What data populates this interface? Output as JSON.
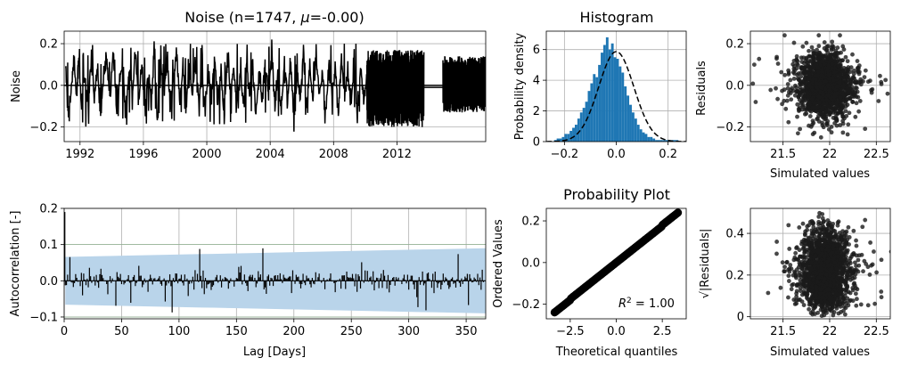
{
  "chart_data": [
    {
      "id": "noise",
      "type": "line",
      "title_prefix": "Noise (n=1747, ",
      "title_mu": "μ",
      "title_suffix": "=-0.00)",
      "xlabel": "",
      "ylabel": "Noise",
      "xlim": [
        1991.0,
        2017.6
      ],
      "ylim": [
        -0.27,
        0.26
      ],
      "xticks": [
        1992,
        1996,
        2000,
        2004,
        2008,
        2012
      ],
      "yticks": [
        -0.2,
        0.0,
        0.2
      ],
      "ytick_labels": [
        "−0.2",
        "0.0",
        "0.2"
      ],
      "grid": true,
      "series": [
        {
          "color": "#000000",
          "x": [
            1991.1,
            1991.2,
            1991.3,
            1991.5,
            1991.6,
            1991.8,
            1991.9,
            1992.1,
            1992.3,
            1992.5,
            1992.7,
            1992.9,
            1993.1,
            1993.3,
            1993.5,
            1993.7,
            1993.9,
            1994.1,
            1994.3,
            1994.5,
            1994.7,
            1994.9,
            1995.1,
            1995.3,
            1995.5,
            1995.7,
            1995.9,
            1996.1,
            1996.3,
            1996.5,
            1996.7,
            1996.9,
            1997.1,
            1997.3,
            1997.5,
            1997.7,
            1997.9,
            1998.1,
            1998.3,
            1998.5,
            1998.7,
            1998.9,
            1999.1,
            1999.3,
            1999.5,
            1999.7,
            1999.9,
            2000.1,
            2000.3,
            2000.5,
            2000.7,
            2000.9,
            2001.1,
            2001.3,
            2001.5,
            2001.7,
            2001.9,
            2002.1,
            2002.3,
            2002.5,
            2002.7,
            2002.9,
            2003.1,
            2003.3,
            2003.5,
            2003.7,
            2003.9,
            2004.1,
            2004.3,
            2004.5,
            2004.7,
            2004.9,
            2005.1,
            2005.3,
            2005.5,
            2005.7,
            2005.9,
            2006.1,
            2006.3,
            2006.5,
            2006.7,
            2006.9,
            2007.1,
            2007.3,
            2007.5,
            2007.7,
            2007.9,
            2008.1,
            2008.3,
            2008.5,
            2008.7,
            2008.9,
            2009.1,
            2009.3,
            2009.5,
            2009.7,
            2009.9,
            2010.1
          ],
          "y": [
            0.12,
            -0.1,
            -0.19,
            0.05,
            0.15,
            -0.08,
            0.18,
            -0.12,
            0.05,
            -0.16,
            0.2,
            -0.05,
            0.1,
            -0.18,
            0.08,
            0.15,
            -0.1,
            0.2,
            -0.13,
            0.06,
            0.12,
            -0.17,
            0.09,
            -0.05,
            0.21,
            -0.12,
            0.14,
            -0.19,
            0.07,
            -0.08,
            0.2,
            -0.24,
            0.1,
            -0.06,
            0.16,
            -0.11,
            0.05,
            0.18,
            -0.09,
            0.12,
            -0.15,
            0.08,
            -0.05,
            0.14,
            -0.1,
            0.06,
            -0.18,
            0.12,
            -0.07,
            0.17,
            -0.12,
            0.09,
            -0.2,
            0.15,
            -0.05,
            0.1,
            -0.15,
            0.07,
            -0.12,
            0.19,
            -0.08,
            0.13,
            -0.21,
            0.09,
            -0.1,
            0.16,
            -0.06,
            0.2,
            -0.13,
            0.08,
            -0.17,
            0.12,
            -0.09,
            0.15,
            -0.22,
            0.06,
            -0.08,
            0.17,
            -0.11,
            0.1,
            -0.14,
            0.2,
            -0.07,
            0.09,
            -0.18,
            0.14,
            -0.05,
            0.12,
            -0.16,
            0.18,
            -0.1,
            0.07,
            -0.13,
            0.16,
            -0.19,
            0.11,
            -0.08,
            0.04
          ]
        }
      ],
      "dense_bands": [
        {
          "x_from": 2010.1,
          "x_to": 2013.7,
          "y_lo": -0.2,
          "y_hi": 0.17
        },
        {
          "x_from": 2014.9,
          "x_to": 2017.6,
          "y_lo": -0.13,
          "y_hi": 0.14
        }
      ]
    },
    {
      "id": "histogram",
      "type": "bar",
      "title": "Histogram",
      "xlabel": "",
      "ylabel": "Probability density",
      "xlim": [
        -0.27,
        0.27
      ],
      "ylim": [
        0,
        7.2
      ],
      "xticks": [
        -0.2,
        0.0,
        0.2
      ],
      "xtick_labels": [
        "−0.2",
        "0.0",
        "0.2"
      ],
      "yticks": [
        0,
        2,
        4,
        6
      ],
      "grid": true,
      "bar_color": "#1f77b4",
      "bin_start": -0.24,
      "bin_width": 0.01,
      "values": [
        0.1,
        0.2,
        0.2,
        0.3,
        0.5,
        0.5,
        0.7,
        0.9,
        1.1,
        1.5,
        1.9,
        2.2,
        2.6,
        3.3,
        3.8,
        4.4,
        4.2,
        5.0,
        5.8,
        6.3,
        6.8,
        6.0,
        6.4,
        5.5,
        5.4,
        4.9,
        4.5,
        3.6,
        3.0,
        2.4,
        1.9,
        1.5,
        1.1,
        0.8,
        0.6,
        0.5,
        0.3,
        0.3,
        0.2,
        0.1,
        0.1,
        0.1,
        0.1,
        0.1,
        0.1,
        0.1,
        0.1,
        0.1
      ],
      "fit": {
        "type": "normal",
        "mean": 0.0,
        "std": 0.068,
        "color": "#000000",
        "style": "dashed"
      }
    },
    {
      "id": "residuals-vs-simulated",
      "type": "scatter",
      "title": "",
      "xlabel": "Simulated values",
      "ylabel": "Residuals",
      "xlim": [
        21.15,
        22.65
      ],
      "ylim": [
        -0.27,
        0.26
      ],
      "xticks": [
        21.5,
        22.0,
        22.5
      ],
      "yticks": [
        -0.2,
        0.0,
        0.2
      ],
      "ytick_labels": [
        "−0.2",
        "0.0",
        "0.2"
      ],
      "grid": true,
      "point_color": "#1a1a1a",
      "x_center": 21.95,
      "x_spread": 0.13,
      "y_center": 0.0,
      "y_spread": 0.075,
      "n_points": 1747
    },
    {
      "id": "autocorrelation",
      "type": "bar",
      "title": "",
      "xlabel": "Lag [Days]",
      "ylabel": "Autocorrelation [-]",
      "xlim": [
        0,
        367
      ],
      "ylim": [
        -0.105,
        0.2
      ],
      "xticks": [
        0,
        50,
        100,
        150,
        200,
        250,
        300,
        350
      ],
      "yticks": [
        -0.1,
        0.0,
        0.1,
        0.2
      ],
      "ytick_labels": [
        "−0.1",
        "0.0",
        "0.1",
        "0.2"
      ],
      "grid": true,
      "bar_color": "#000000",
      "lag0_value": 0.19,
      "typical_magnitude": 0.015,
      "max_magnitude": 0.09,
      "confidence_band": {
        "color": "#b9d4ea",
        "start": 0.066,
        "end": 0.09
      },
      "reference_lines": [
        0.1,
        -0.1
      ]
    },
    {
      "id": "probability-plot",
      "type": "scatter",
      "title": "Probability Plot",
      "xlabel": "Theoretical quantiles",
      "ylabel": "Ordered Values",
      "xlim": [
        -3.8,
        3.8
      ],
      "ylim": [
        -0.27,
        0.26
      ],
      "xticks": [
        -2.5,
        0.0,
        2.5
      ],
      "xtick_labels": [
        "−2.5",
        "0.0",
        "2.5"
      ],
      "yticks": [
        -0.2,
        0.0,
        0.2
      ],
      "ytick_labels": [
        "−0.2",
        "0.0",
        "0.2"
      ],
      "grid": false,
      "point_color": "#000000",
      "x_range": [
        -3.35,
        3.35
      ],
      "fit": {
        "slope": 0.07,
        "intercept": 0.0
      },
      "annotation_prefix": "R",
      "annotation_sup": "2",
      "annotation_suffix": " = 1.00"
    },
    {
      "id": "scale-location",
      "type": "scatter",
      "title": "",
      "xlabel": "Simulated values",
      "ylabel": "√|Residuals|",
      "xlim": [
        21.15,
        22.65
      ],
      "ylim": [
        -0.01,
        0.52
      ],
      "xticks": [
        21.5,
        22.0,
        22.5
      ],
      "yticks": [
        0.0,
        0.2,
        0.4
      ],
      "grid": true,
      "point_color": "#1a1a1a",
      "n_points": 1747
    }
  ]
}
